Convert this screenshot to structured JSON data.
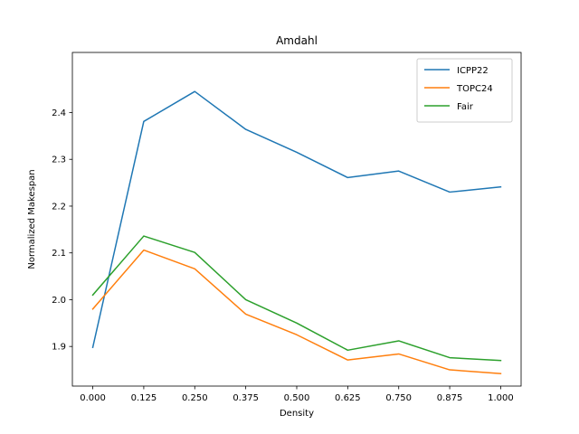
{
  "chart_data": {
    "type": "line",
    "title": "Amdahl",
    "xlabel": "Density",
    "ylabel": "Normalized Makespan",
    "x": [
      0.0,
      0.125,
      0.25,
      0.375,
      0.5,
      0.625,
      0.75,
      0.875,
      1.0
    ],
    "x_tick_labels": [
      "0.000",
      "0.125",
      "0.250",
      "0.375",
      "0.500",
      "0.625",
      "0.750",
      "0.875",
      "1.000"
    ],
    "y_ticks": [
      1.9,
      2.0,
      2.1,
      2.2,
      2.3,
      2.4
    ],
    "y_tick_labels": [
      "1.9",
      "2.0",
      "2.1",
      "2.2",
      "2.3",
      "2.4"
    ],
    "xlim": [
      -0.05,
      1.05
    ],
    "ylim": [
      1.8153,
      2.5285
    ],
    "grid": false,
    "legend_position": "top-right",
    "series": [
      {
        "name": "ICPP22",
        "color": "#1f77b4",
        "values": [
          1.898,
          2.381,
          2.445,
          2.364,
          2.315,
          2.261,
          2.275,
          2.23,
          2.241
        ]
      },
      {
        "name": "TOPC24",
        "color": "#ff7f0e",
        "values": [
          1.98,
          2.106,
          2.066,
          1.969,
          1.925,
          1.871,
          1.884,
          1.85,
          1.842
        ]
      },
      {
        "name": "Fair",
        "color": "#2ca02c",
        "values": [
          2.01,
          2.136,
          2.101,
          2.0,
          1.95,
          1.892,
          1.912,
          1.876,
          1.87
        ]
      }
    ]
  }
}
